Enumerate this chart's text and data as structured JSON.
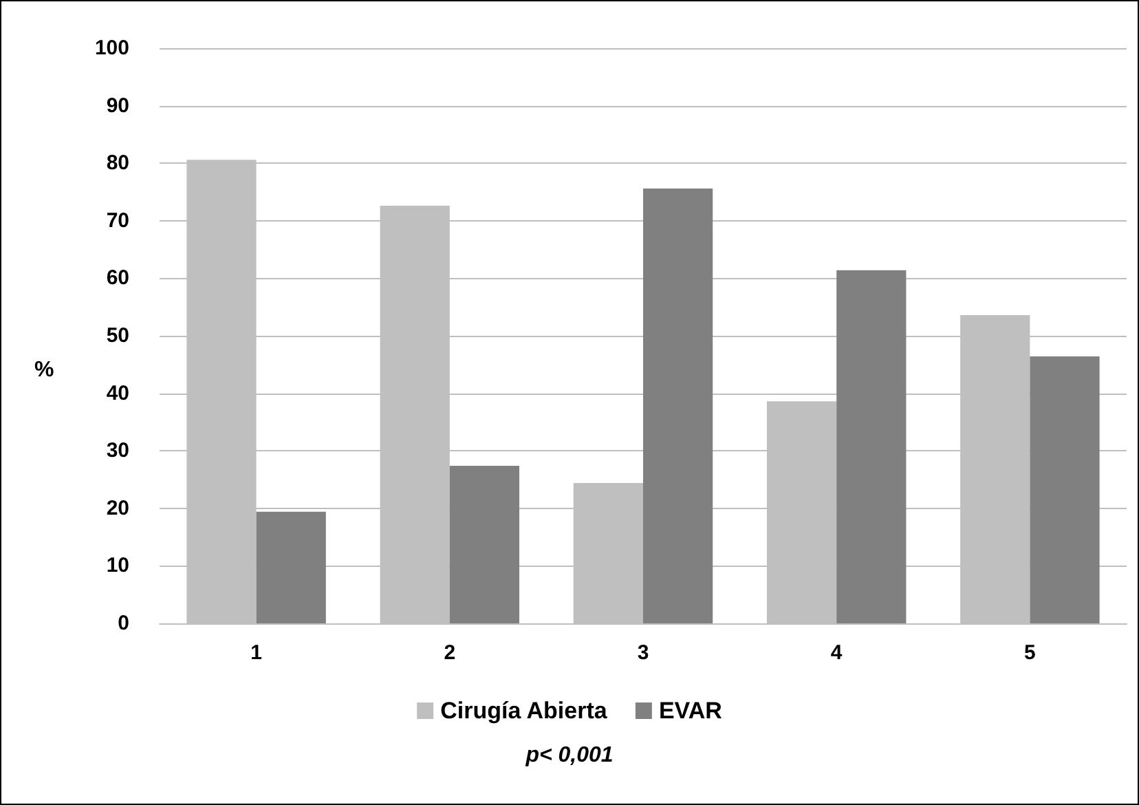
{
  "chart_data": {
    "type": "bar",
    "ylabel": "%",
    "categories": [
      "1",
      "2",
      "3",
      "4",
      "5"
    ],
    "series": [
      {
        "name": "Cirugía Abierta",
        "color": "#bfbfbf",
        "values": [
          80.6,
          72.6,
          24.4,
          38.6,
          53.6
        ]
      },
      {
        "name": "EVAR",
        "color": "#808080",
        "values": [
          19.4,
          27.4,
          75.6,
          61.4,
          46.4
        ]
      }
    ],
    "ylim": [
      0,
      100
    ],
    "yticks": [
      0,
      10,
      20,
      30,
      40,
      50,
      60,
      70,
      80,
      90,
      100
    ],
    "grid": "y",
    "legend": "bottom",
    "annotations": [
      "p< 0,001"
    ]
  }
}
